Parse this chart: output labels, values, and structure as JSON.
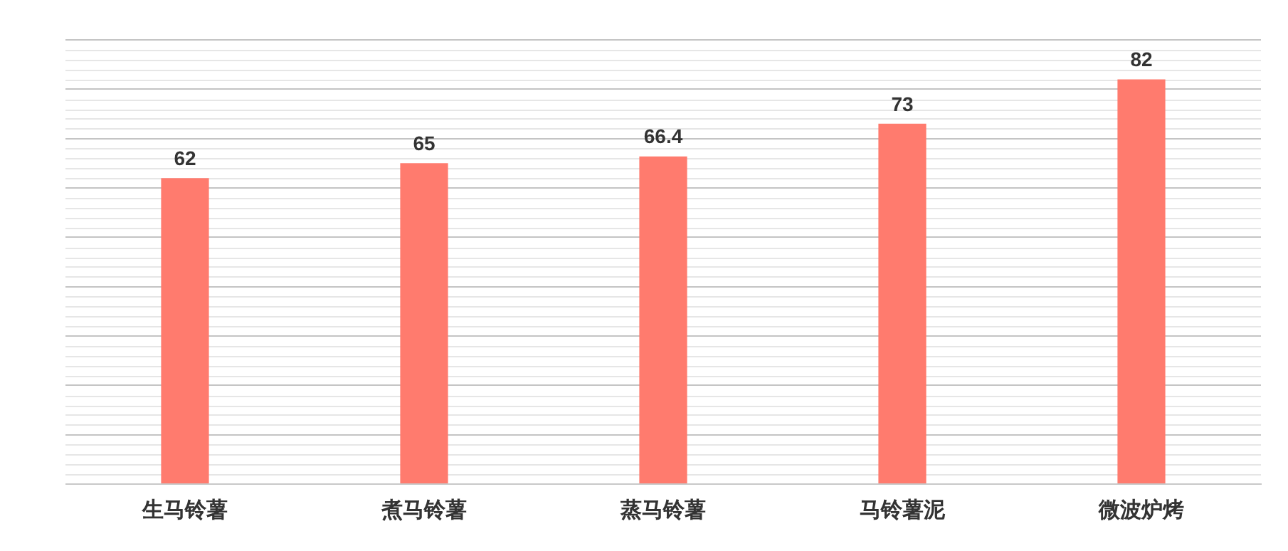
{
  "chart_data": {
    "type": "bar",
    "categories": [
      "生马铃薯",
      "煮马铃薯",
      "蒸马铃薯",
      "马铃薯泥",
      "微波炉烤"
    ],
    "values": [
      62,
      65,
      66.4,
      73,
      82
    ],
    "color": "#ff7b6e",
    "data_labels": true,
    "grid": "y",
    "tick_labels": "x",
    "ylim": [
      0,
      90
    ],
    "yticks": [
      {
        "value": 0,
        "label": null
      },
      {
        "value": 10,
        "label": null
      },
      {
        "value": 20,
        "label": null
      },
      {
        "value": 30,
        "label": null
      },
      {
        "value": 40,
        "label": null
      },
      {
        "value": 50,
        "label": null
      },
      {
        "value": 60,
        "label": null
      },
      {
        "value": 70,
        "label": null
      },
      {
        "value": 80,
        "label": null
      },
      {
        "value": 90,
        "label": null
      }
    ]
  }
}
